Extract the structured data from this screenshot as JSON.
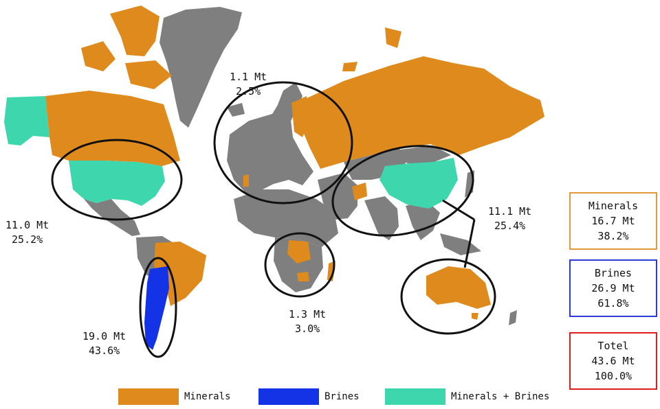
{
  "colors": {
    "minerals": "#df8a1c",
    "brines": "#1433e6",
    "minerals_brines": "#3ed6ac",
    "other_land": "#7f7f7f",
    "ocean": "#ffffff",
    "box_minerals": "#e09a3a",
    "box_brines": "#2a3bd6",
    "box_total": "#e01c1c"
  },
  "regions": [
    {
      "id": "europe",
      "amount": "1.1 Mt",
      "share": "2.5%"
    },
    {
      "id": "north-america",
      "amount": "11.0 Mt",
      "share": "25.2%"
    },
    {
      "id": "asia-australia",
      "amount": "11.1 Mt",
      "share": "25.4%"
    },
    {
      "id": "africa",
      "amount": "1.3 Mt",
      "share": "3.0%"
    },
    {
      "id": "south-america",
      "amount": "19.0 Mt",
      "share": "43.6%"
    }
  ],
  "summary": {
    "minerals": {
      "title": "Minerals",
      "amount": "16.7 Mt",
      "share": "38.2%"
    },
    "brines": {
      "title": "Brines",
      "amount": "26.9 Mt",
      "share": "61.8%"
    },
    "total": {
      "title": "Totel",
      "amount": "43.6 Mt",
      "share": "100.0%"
    }
  },
  "legend": [
    {
      "label": "Minerals",
      "color": "#df8a1c"
    },
    {
      "label": "Brines",
      "color": "#1433e6"
    },
    {
      "label": "Minerals + Brines",
      "color": "#3ed6ac"
    }
  ]
}
